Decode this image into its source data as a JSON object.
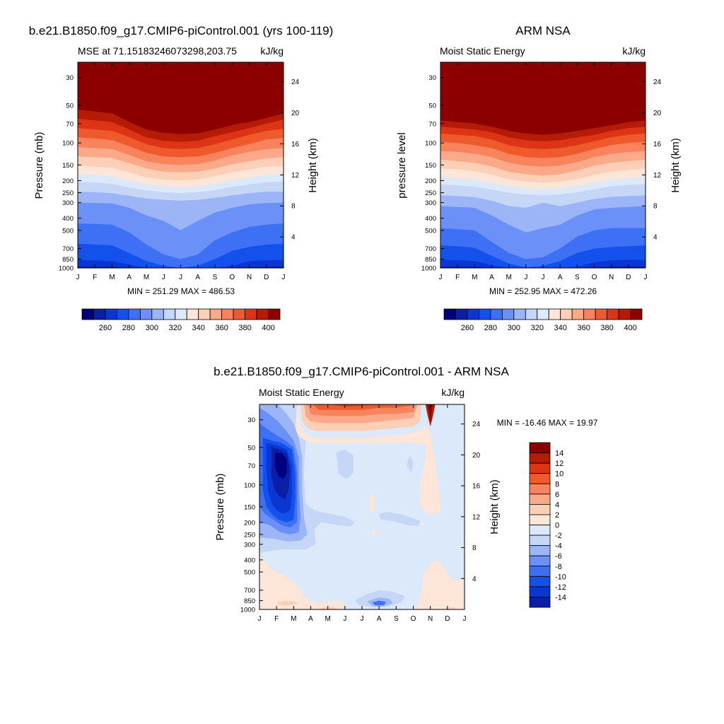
{
  "chart_data": [
    {
      "type": "heatmap",
      "title": "b.e21.B1850.f09_g17.CMIP6-piControl.001 (yrs 100-119)",
      "subtitle_left": "MSE at 71.15183246073298,203.75",
      "subtitle_right": "kJ/kg",
      "ylabel": "Pressure (mb)",
      "ylabel_right": "Height (km)",
      "x_ticks": [
        "J",
        "F",
        "M",
        "A",
        "M",
        "J",
        "J",
        "A",
        "S",
        "O",
        "N",
        "D",
        "J"
      ],
      "y_ticks": [
        30,
        50,
        70,
        100,
        150,
        200,
        250,
        300,
        400,
        500,
        700,
        850,
        1000
      ],
      "y_right_ticks": [
        24,
        20,
        16,
        12,
        8,
        4
      ],
      "stats": "MIN = 251.29 MAX = 486.53",
      "colorbar_ticks": [
        "260",
        "280",
        "300",
        "320",
        "340",
        "360",
        "380",
        "400"
      ],
      "boundaries_hpa": [
        [
          54,
          56,
          58,
          68,
          78,
          83,
          85,
          84,
          78,
          72,
          68,
          63,
          58
        ],
        [
          64,
          66,
          68,
          78,
          90,
          96,
          98,
          96,
          88,
          82,
          76,
          70,
          65
        ],
        [
          76,
          78,
          80,
          90,
          102,
          110,
          112,
          110,
          102,
          94,
          86,
          80,
          77
        ],
        [
          90,
          92,
          95,
          106,
          120,
          128,
          130,
          128,
          120,
          110,
          102,
          94,
          91
        ],
        [
          108,
          110,
          112,
          125,
          140,
          148,
          150,
          148,
          138,
          126,
          118,
          112,
          110
        ],
        [
          128,
          130,
          132,
          145,
          160,
          170,
          172,
          170,
          160,
          148,
          140,
          133,
          130
        ],
        [
          152,
          155,
          158,
          172,
          188,
          196,
          200,
          196,
          185,
          172,
          162,
          155,
          153
        ],
        [
          178,
          180,
          185,
          200,
          214,
          222,
          226,
          222,
          212,
          198,
          188,
          180,
          178
        ],
        [
          205,
          208,
          212,
          228,
          240,
          248,
          252,
          248,
          238,
          224,
          214,
          206,
          205
        ],
        [
          245,
          248,
          252,
          265,
          278,
          285,
          290,
          285,
          275,
          262,
          252,
          245,
          245
        ],
        [
          300,
          302,
          305,
          330,
          380,
          420,
          500,
          420,
          360,
          330,
          310,
          302,
          300
        ],
        [
          440,
          445,
          450,
          520,
          650,
          780,
          850,
          780,
          600,
          520,
          470,
          450,
          440
        ],
        [
          640,
          650,
          660,
          760,
          880,
          960,
          1000,
          960,
          850,
          730,
          680,
          650,
          640
        ],
        [
          860,
          870,
          880,
          940,
          1000,
          1000,
          1000,
          1000,
          1000,
          960,
          880,
          870,
          860
        ],
        [
          975,
          978,
          980,
          1000,
          1000,
          1000,
          1000,
          1000,
          1000,
          1000,
          985,
          980,
          976
        ]
      ]
    },
    {
      "type": "heatmap",
      "title": "ARM NSA",
      "subtitle_left": "Moist Static Energy",
      "subtitle_right": "kJ/kg",
      "ylabel": "pressure level",
      "ylabel_right": "Height (km)",
      "x_ticks": [
        "J",
        "F",
        "M",
        "A",
        "M",
        "J",
        "J",
        "A",
        "S",
        "O",
        "N",
        "D",
        "J"
      ],
      "y_ticks": [
        30,
        50,
        70,
        100,
        150,
        200,
        250,
        300,
        400,
        500,
        700,
        850,
        1000
      ],
      "y_right_ticks": [
        24,
        20,
        16,
        12,
        8,
        4
      ],
      "stats": "MIN = 252.95 MAX = 472.26",
      "colorbar_ticks": [
        "260",
        "280",
        "300",
        "320",
        "340",
        "360",
        "380",
        "400"
      ],
      "boundaries_hpa": [
        [
          66,
          68,
          70,
          74,
          80,
          84,
          86,
          84,
          80,
          76,
          72,
          68,
          66
        ],
        [
          74,
          76,
          78,
          82,
          90,
          95,
          97,
          95,
          90,
          86,
          80,
          76,
          74
        ],
        [
          84,
          86,
          88,
          94,
          104,
          110,
          112,
          110,
          104,
          97,
          90,
          86,
          84
        ],
        [
          98,
          100,
          104,
          110,
          122,
          130,
          132,
          130,
          122,
          112,
          104,
          100,
          98
        ],
        [
          116,
          118,
          122,
          130,
          144,
          152,
          155,
          152,
          142,
          130,
          122,
          118,
          116
        ],
        [
          136,
          140,
          144,
          154,
          170,
          178,
          182,
          178,
          166,
          152,
          144,
          140,
          136
        ],
        [
          160,
          163,
          168,
          180,
          196,
          204,
          208,
          204,
          194,
          180,
          170,
          164,
          160
        ],
        [
          186,
          190,
          196,
          208,
          222,
          230,
          234,
          230,
          220,
          206,
          196,
          190,
          186
        ],
        [
          214,
          218,
          224,
          236,
          250,
          258,
          262,
          258,
          248,
          234,
          222,
          216,
          214
        ],
        [
          262,
          266,
          272,
          290,
          320,
          330,
          300,
          320,
          300,
          280,
          270,
          266,
          262
        ],
        [
          320,
          325,
          330,
          380,
          450,
          520,
          480,
          450,
          380,
          340,
          330,
          325,
          320
        ],
        [
          480,
          490,
          500,
          620,
          760,
          850,
          820,
          700,
          560,
          500,
          480,
          480,
          480
        ],
        [
          660,
          670,
          690,
          800,
          920,
          990,
          960,
          880,
          760,
          700,
          680,
          670,
          660
        ],
        [
          860,
          870,
          880,
          950,
          1000,
          1000,
          1000,
          1000,
          980,
          900,
          870,
          860,
          860
        ],
        [
          975,
          978,
          980,
          1000,
          1000,
          1000,
          1000,
          1000,
          1000,
          990,
          970,
          972,
          975
        ]
      ]
    },
    {
      "type": "heatmap",
      "title": "b.e21.B1850.f09_g17.CMIP6-piControl.001 - ARM NSA",
      "subtitle_left": "Moist Static Energy",
      "subtitle_right": "kJ/kg",
      "ylabel": "Pressure (mb)",
      "ylabel_right": "Height (km)",
      "x_ticks": [
        "J",
        "F",
        "M",
        "A",
        "M",
        "J",
        "J",
        "A",
        "S",
        "O",
        "N",
        "D",
        "J"
      ],
      "y_ticks": [
        30,
        50,
        70,
        100,
        150,
        200,
        250,
        300,
        400,
        500,
        700,
        850,
        1000
      ],
      "y_right_ticks": [
        24,
        20,
        16,
        12,
        8,
        4
      ],
      "stats": "MIN = -16.46 MAX =  19.97",
      "colorbar_ticks": [
        "14",
        "12",
        "10",
        "8",
        "6",
        "4",
        "2",
        "0",
        "-2",
        "-4",
        "-6",
        "-8",
        "-10",
        "-12",
        "-14"
      ],
      "features": [
        "negative minimum about -15 near 60-80 mb in February",
        "positive maximum above 30 mb in November",
        "weak positive areas near 850 mb in February and May",
        "negative area about -8 near 900 mb in August"
      ]
    }
  ],
  "colors": {
    "diverging": [
      "#00007f",
      "#0a1fa6",
      "#0a37d2",
      "#1450ec",
      "#3d70f5",
      "#6b90f7",
      "#9cb5f7",
      "#c5d6f7",
      "#dce9fb",
      "#fde6d8",
      "#fdcfb6",
      "#fca98a",
      "#f9835c",
      "#ef5a2d",
      "#dc3414",
      "#b51b06",
      "#8c0000"
    ],
    "cb1": [
      "#00007f",
      "#0a1fa6",
      "#0a37d2",
      "#1450ec",
      "#3d70f5",
      "#6b90f7",
      "#9cb5f7",
      "#c5d6f7",
      "#dce9fb",
      "#fde6d8",
      "#fdcfb6",
      "#fca98a",
      "#f9835c",
      "#ef5a2d",
      "#dc3414",
      "#b51b06",
      "#8c0000"
    ],
    "diff_levels": [
      "#00007f",
      "#0a1fa6",
      "#0a37d2",
      "#1450ec",
      "#3d70f5",
      "#6b90f7",
      "#9cb5f7",
      "#c5d6f7",
      "#dce9fb",
      "#fde6d8",
      "#fdcfb6",
      "#fca98a",
      "#f9835c",
      "#ef5a2d",
      "#dc3414",
      "#b51b06",
      "#8c0000"
    ]
  }
}
